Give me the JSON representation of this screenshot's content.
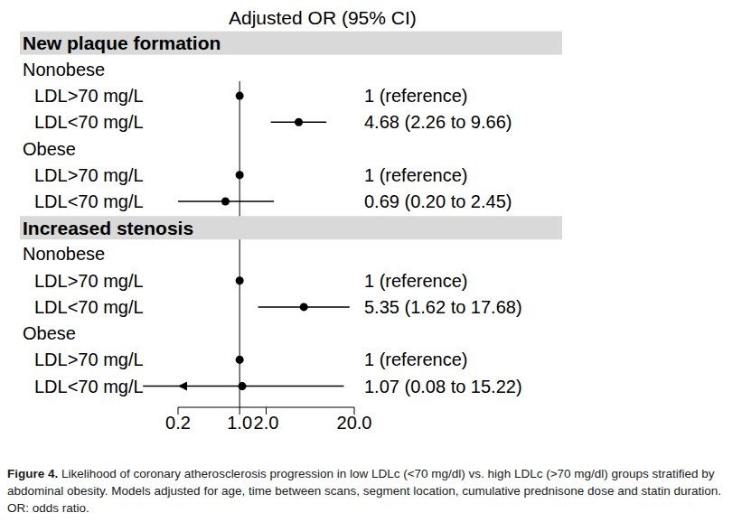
{
  "chart_data": {
    "type": "forest",
    "title": "Adjusted OR (95% CI)",
    "caption": "Figure 4. Likelihood of coronary atherosclerosis progression in low LDLc (<70 mg/dl) vs. high LDLc (>70 mg/dl) groups stratified by abdominal obesity. Models adjusted for age, time between scans, segment location, cumulative prednisone dose and statin duration. OR: odds ratio.",
    "log": "x",
    "xlim": [
      0.2,
      20
    ],
    "xticks": [
      0.2,
      {
        "value": 1,
        "label": "1.0"
      },
      {
        "value": 2,
        "label": "2.0"
      },
      {
        "value": 20,
        "label": "20.0"
      }
    ],
    "reference_line": 1,
    "color": "#000000",
    "marker": "circle",
    "sections": [
      {
        "title": "New plaque formation",
        "groups": [
          {
            "name": "Nonobese",
            "categories": [
              "LDL>70 mg/L",
              "LDL<70 mg/L"
            ],
            "values": [
              1,
              4.68
            ],
            "lower": [
              null,
              2.26
            ],
            "upper": [
              null,
              9.66
            ],
            "value_labels": [
              "1 (reference)",
              "4.68 (2.26 to 9.66)"
            ]
          },
          {
            "name": "Obese",
            "categories": [
              "LDL>70 mg/L",
              "LDL<70 mg/L"
            ],
            "values": [
              1,
              0.69
            ],
            "lower": [
              null,
              0.2
            ],
            "upper": [
              null,
              2.45
            ],
            "value_labels": [
              "1 (reference)",
              "0.69 (0.20 to 2.45)"
            ]
          }
        ]
      },
      {
        "title": "Increased stenosis",
        "groups": [
          {
            "name": "Nonobese",
            "categories": [
              "LDL>70 mg/L",
              "LDL<70 mg/L"
            ],
            "values": [
              1,
              5.35
            ],
            "lower": [
              null,
              1.62
            ],
            "upper": [
              null,
              17.68
            ],
            "value_labels": [
              "1 (reference)",
              "5.35 (1.62 to 17.68)"
            ]
          },
          {
            "name": "Obese",
            "categories": [
              "LDL>70 mg/L",
              "LDL<70 mg/L"
            ],
            "values": [
              1,
              1.07
            ],
            "lower": [
              null,
              0.08
            ],
            "upper": [
              null,
              15.22
            ],
            "value_labels": [
              "1 (reference)",
              "1.07 (0.08 to 15.22)"
            ]
          }
        ]
      }
    ]
  }
}
